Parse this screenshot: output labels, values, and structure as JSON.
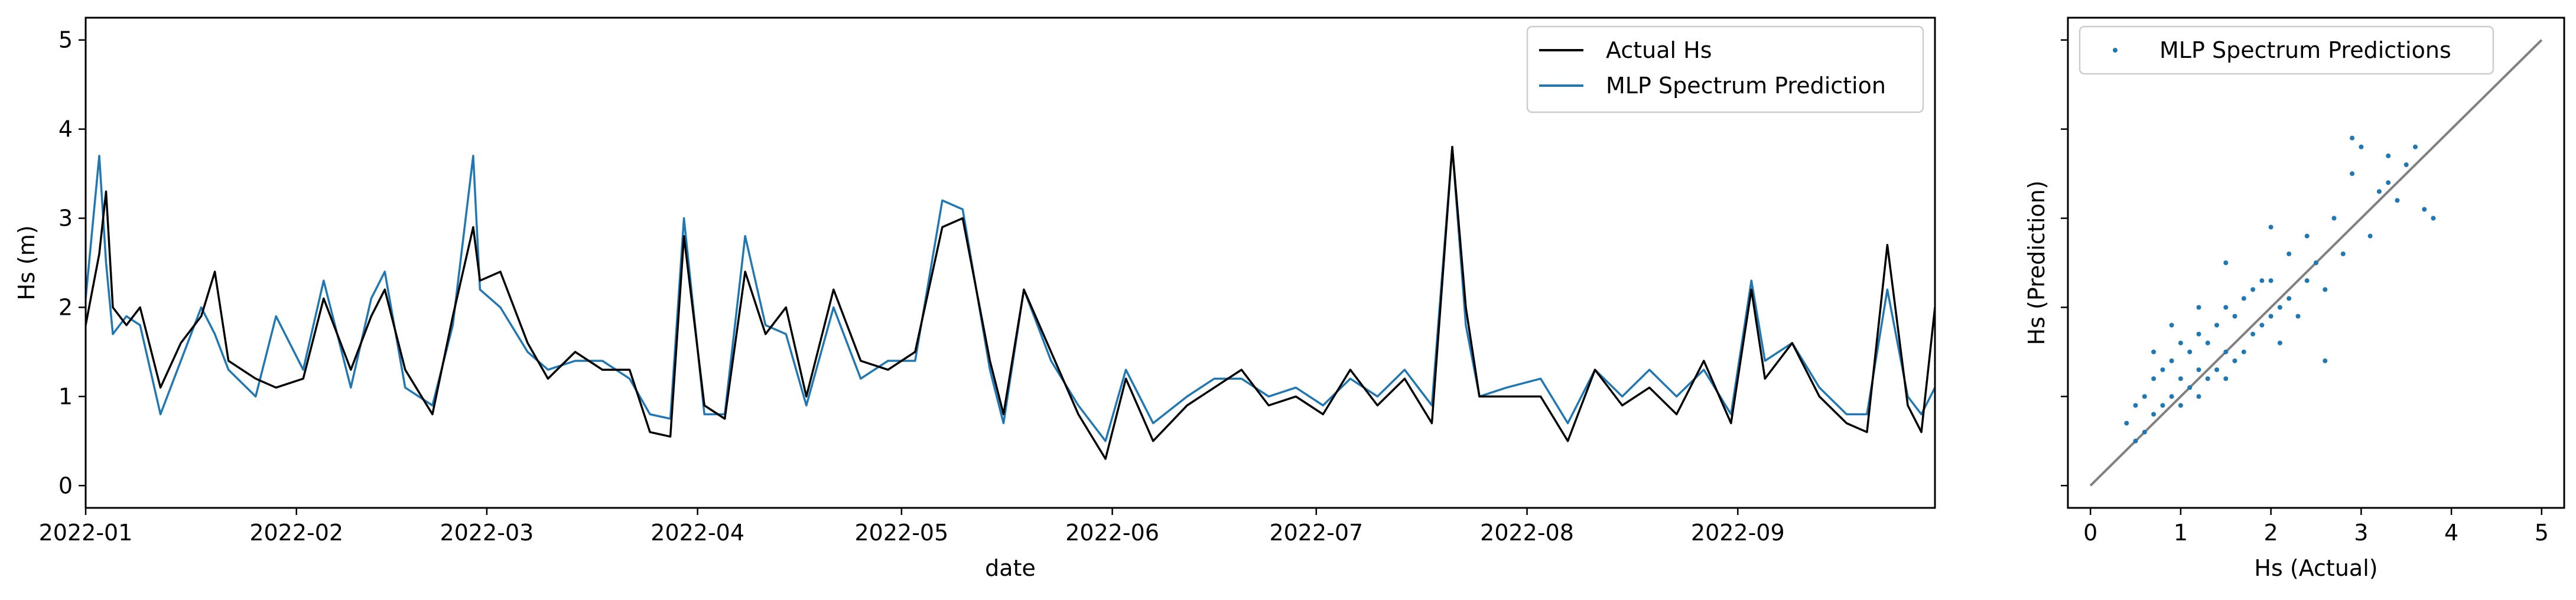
{
  "chart_data": [
    {
      "type": "line",
      "xlabel": "date",
      "ylabel": "Hs (m)",
      "xlim": [
        "2022-01-01",
        "2022-09-30"
      ],
      "ylim": [
        -0.25,
        5.25
      ],
      "xticks": [
        "2022-01-01",
        "2022-02-01",
        "2022-03-01",
        "2022-04-01",
        "2022-05-01",
        "2022-06-01",
        "2022-07-01",
        "2022-08-01",
        "2022-09-01"
      ],
      "xtick_labels": [
        "2022-01",
        "2022-02",
        "2022-03",
        "2022-04",
        "2022-05",
        "2022-06",
        "2022-07",
        "2022-08",
        "2022-09"
      ],
      "yticks": [
        0,
        1,
        2,
        3,
        4,
        5
      ],
      "ytick_labels": [
        "0",
        "1",
        "2",
        "3",
        "4",
        "5"
      ],
      "legend": "top-right",
      "x": [
        "2022-01-01",
        "2022-01-03",
        "2022-01-04",
        "2022-01-05",
        "2022-01-07",
        "2022-01-09",
        "2022-01-12",
        "2022-01-15",
        "2022-01-18",
        "2022-01-20",
        "2022-01-22",
        "2022-01-26",
        "2022-01-29",
        "2022-02-02",
        "2022-02-05",
        "2022-02-09",
        "2022-02-12",
        "2022-02-14",
        "2022-02-17",
        "2022-02-21",
        "2022-02-24",
        "2022-02-27",
        "2022-02-28",
        "2022-03-03",
        "2022-03-07",
        "2022-03-10",
        "2022-03-14",
        "2022-03-18",
        "2022-03-22",
        "2022-03-25",
        "2022-03-28",
        "2022-03-30",
        "2022-04-02",
        "2022-04-05",
        "2022-04-08",
        "2022-04-11",
        "2022-04-14",
        "2022-04-17",
        "2022-04-21",
        "2022-04-25",
        "2022-04-29",
        "2022-05-03",
        "2022-05-07",
        "2022-05-10",
        "2022-05-14",
        "2022-05-16",
        "2022-05-19",
        "2022-05-23",
        "2022-05-27",
        "2022-05-31",
        "2022-06-03",
        "2022-06-07",
        "2022-06-12",
        "2022-06-16",
        "2022-06-20",
        "2022-06-24",
        "2022-06-28",
        "2022-07-02",
        "2022-07-06",
        "2022-07-10",
        "2022-07-14",
        "2022-07-18",
        "2022-07-21",
        "2022-07-23",
        "2022-07-25",
        "2022-07-29",
        "2022-08-03",
        "2022-08-07",
        "2022-08-11",
        "2022-08-15",
        "2022-08-19",
        "2022-08-23",
        "2022-08-27",
        "2022-08-31",
        "2022-09-03",
        "2022-09-05",
        "2022-09-09",
        "2022-09-13",
        "2022-09-17",
        "2022-09-20",
        "2022-09-23",
        "2022-09-26",
        "2022-09-28",
        "2022-09-30"
      ],
      "series": [
        {
          "name": "Actual Hs",
          "color": "#000000",
          "values": [
            1.8,
            2.6,
            3.3,
            2.0,
            1.8,
            2.0,
            1.1,
            1.6,
            1.9,
            2.4,
            1.4,
            1.2,
            1.1,
            1.2,
            2.1,
            1.3,
            1.9,
            2.2,
            1.3,
            0.8,
            1.9,
            2.9,
            2.3,
            2.4,
            1.6,
            1.2,
            1.5,
            1.3,
            1.3,
            0.6,
            0.55,
            2.8,
            0.9,
            0.75,
            2.4,
            1.7,
            2.0,
            1.0,
            2.2,
            1.4,
            1.3,
            1.5,
            2.9,
            3.0,
            1.4,
            0.8,
            2.2,
            1.5,
            0.8,
            0.3,
            1.2,
            0.5,
            0.9,
            1.1,
            1.3,
            0.9,
            1.0,
            0.8,
            1.3,
            0.9,
            1.2,
            0.7,
            3.8,
            2.0,
            1.0,
            1.0,
            1.0,
            0.5,
            1.3,
            0.9,
            1.1,
            0.8,
            1.4,
            0.7,
            2.2,
            1.2,
            1.6,
            1.0,
            0.7,
            0.6,
            2.7,
            0.9,
            0.6,
            2.0
          ]
        },
        {
          "name": "MLP Spectrum Prediction",
          "color": "#1f77b4",
          "values": [
            2.1,
            3.7,
            2.5,
            1.7,
            1.9,
            1.8,
            0.8,
            1.4,
            2.0,
            1.7,
            1.3,
            1.0,
            1.9,
            1.3,
            2.3,
            1.1,
            2.1,
            2.4,
            1.1,
            0.9,
            1.8,
            3.7,
            2.2,
            2.0,
            1.5,
            1.3,
            1.4,
            1.4,
            1.2,
            0.8,
            0.75,
            3.0,
            0.8,
            0.8,
            2.8,
            1.8,
            1.7,
            0.9,
            2.0,
            1.2,
            1.4,
            1.4,
            3.2,
            3.1,
            1.3,
            0.7,
            2.2,
            1.4,
            0.9,
            0.5,
            1.3,
            0.7,
            1.0,
            1.2,
            1.2,
            1.0,
            1.1,
            0.9,
            1.2,
            1.0,
            1.3,
            0.9,
            3.8,
            1.8,
            1.0,
            1.1,
            1.2,
            0.7,
            1.3,
            1.0,
            1.3,
            1.0,
            1.3,
            0.8,
            2.3,
            1.4,
            1.6,
            1.1,
            0.8,
            0.8,
            2.2,
            1.0,
            0.8,
            1.1
          ]
        }
      ]
    },
    {
      "type": "scatter",
      "xlabel": "Hs (Actual)",
      "ylabel": "Hs (Prediction)",
      "xlim": [
        -0.25,
        5.25
      ],
      "ylim": [
        -0.25,
        5.25
      ],
      "xticks": [
        0,
        1,
        2,
        3,
        4,
        5
      ],
      "xtick_labels": [
        "0",
        "1",
        "2",
        "3",
        "4",
        "5"
      ],
      "yticks": [
        0,
        1,
        2,
        3,
        4,
        5
      ],
      "legend": "top-left",
      "reference_line": {
        "from": [
          0,
          0
        ],
        "to": [
          5,
          5
        ],
        "color": "#808080"
      },
      "series": [
        {
          "name": "MLP Spectrum Predictions",
          "color": "#1f77b4",
          "x": [
            0.4,
            0.5,
            0.5,
            0.6,
            0.6,
            0.7,
            0.7,
            0.8,
            0.8,
            0.9,
            0.9,
            1.0,
            1.0,
            1.0,
            1.1,
            1.1,
            1.2,
            1.2,
            1.2,
            1.3,
            1.3,
            1.4,
            1.4,
            1.5,
            1.5,
            1.5,
            1.6,
            1.6,
            1.7,
            1.7,
            1.8,
            1.8,
            1.9,
            1.9,
            2.0,
            2.0,
            2.1,
            2.1,
            2.2,
            2.2,
            2.3,
            2.4,
            2.4,
            2.5,
            2.6,
            2.7,
            2.8,
            2.9,
            3.0,
            3.1,
            3.2,
            3.3,
            3.4,
            3.5,
            3.6,
            3.7,
            3.8,
            2.9,
            3.3,
            1.5,
            1.2,
            0.9,
            0.7,
            2.0,
            2.6
          ],
          "y": [
            0.7,
            0.5,
            0.9,
            0.6,
            1.0,
            0.8,
            1.2,
            0.9,
            1.3,
            1.0,
            1.4,
            0.9,
            1.2,
            1.6,
            1.1,
            1.5,
            1.0,
            1.3,
            1.7,
            1.2,
            1.6,
            1.3,
            1.8,
            1.2,
            1.5,
            2.0,
            1.4,
            1.9,
            1.5,
            2.1,
            1.7,
            2.2,
            1.8,
            2.3,
            1.9,
            2.3,
            1.6,
            2.0,
            2.1,
            2.6,
            1.9,
            2.3,
            2.8,
            2.5,
            2.2,
            3.0,
            2.6,
            3.5,
            3.8,
            2.8,
            3.3,
            3.4,
            3.2,
            3.6,
            3.8,
            3.1,
            3.0,
            3.9,
            3.7,
            2.5,
            2.0,
            1.8,
            1.5,
            2.9,
            1.4
          ]
        }
      ]
    }
  ]
}
